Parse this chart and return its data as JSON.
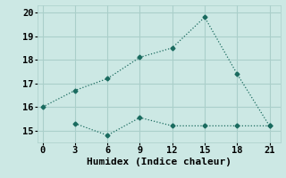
{
  "line1_x": [
    0,
    3,
    6,
    9,
    12,
    15,
    18,
    21
  ],
  "line1_y": [
    16.0,
    16.7,
    17.2,
    18.1,
    18.5,
    19.8,
    17.4,
    15.2
  ],
  "line2_x": [
    3,
    6,
    9,
    12,
    15,
    18,
    21
  ],
  "line2_y": [
    15.3,
    14.8,
    15.55,
    15.2,
    15.2,
    15.2,
    15.2
  ],
  "line_color": "#1a6b5f",
  "bg_color": "#cce8e4",
  "grid_color": "#aacfca",
  "xlabel": "Humidex (Indice chaleur)",
  "xlim": [
    -0.5,
    22
  ],
  "ylim": [
    14.5,
    20.3
  ],
  "xticks": [
    0,
    3,
    6,
    9,
    12,
    15,
    18,
    21
  ],
  "yticks": [
    15,
    16,
    17,
    18,
    19,
    20
  ],
  "xlabel_fontsize": 8,
  "tick_fontsize": 7.5
}
